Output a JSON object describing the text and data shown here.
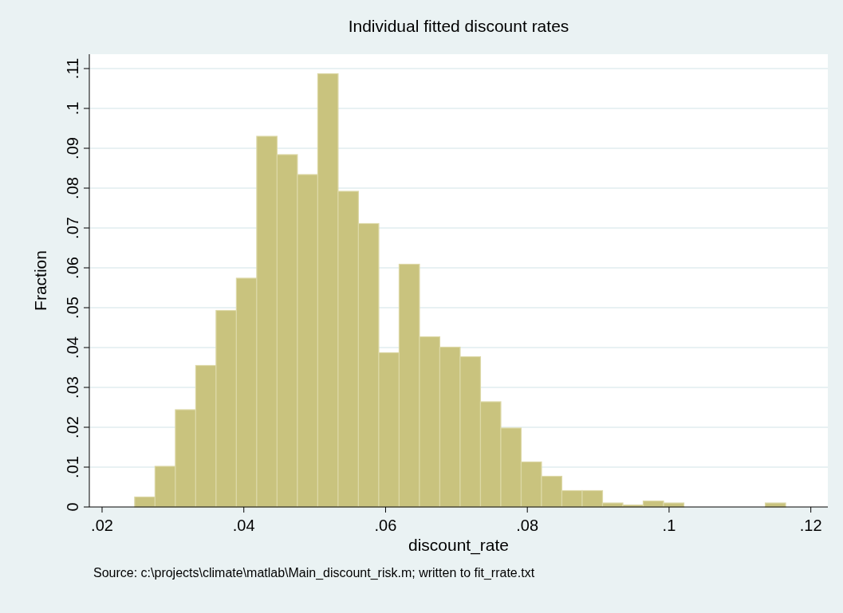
{
  "chart_data": {
    "type": "histogram",
    "title": "Individual fitted discount rates",
    "xlabel": "discount_rate",
    "ylabel": "Fraction",
    "annotations": [
      "Source: c:\\projects\\climate\\matlab\\Main_discount_risk.m; written to fit_rrate.txt"
    ],
    "bins": [
      0.0246,
      0.02747,
      0.03034,
      0.03321,
      0.03608,
      0.03895,
      0.04182,
      0.04469,
      0.04756,
      0.05043,
      0.0533,
      0.05617,
      0.05904,
      0.06191,
      0.06478,
      0.06765,
      0.07052,
      0.07339,
      0.07626,
      0.07913,
      0.082,
      0.08487,
      0.08774,
      0.09061,
      0.09348,
      0.09635,
      0.09922,
      0.10209,
      0.10496,
      0.10783,
      0.1107,
      0.11357,
      0.11644
    ],
    "values": [
      0.0025,
      0.0102,
      0.0244,
      0.0355,
      0.0493,
      0.0574,
      0.093,
      0.0884,
      0.0834,
      0.1087,
      0.0792,
      0.0711,
      0.0387,
      0.0609,
      0.0427,
      0.0401,
      0.0377,
      0.0264,
      0.0198,
      0.0113,
      0.0077,
      0.0041,
      0.0041,
      0.001,
      0.0005,
      0.0015,
      0.001,
      0,
      0,
      0,
      0,
      0.001
    ],
    "color": "#c9c37e",
    "xlim": [
      0.0182,
      0.1224
    ],
    "xticks": [
      {
        "value": 0.02,
        "label": ".02"
      },
      {
        "value": 0.04,
        "label": ".04"
      },
      {
        "value": 0.06,
        "label": ".06"
      },
      {
        "value": 0.08,
        "label": ".08"
      },
      {
        "value": 0.1,
        "label": ".1"
      },
      {
        "value": 0.12,
        "label": ".12"
      }
    ],
    "ylim": [
      0,
      0.1136
    ],
    "yticks": [
      0,
      {
        "value": 0.01,
        "label": ".01"
      },
      {
        "value": 0.02,
        "label": ".02"
      },
      {
        "value": 0.03,
        "label": ".03"
      },
      {
        "value": 0.04,
        "label": ".04"
      },
      {
        "value": 0.05,
        "label": ".05"
      },
      {
        "value": 0.06,
        "label": ".06"
      },
      {
        "value": 0.07,
        "label": ".07"
      },
      {
        "value": 0.08,
        "label": ".08"
      },
      {
        "value": 0.09,
        "label": ".09"
      },
      {
        "value": 0.1,
        "label": ".1"
      },
      {
        "value": 0.11,
        "label": ".11"
      }
    ],
    "grid": "y"
  }
}
